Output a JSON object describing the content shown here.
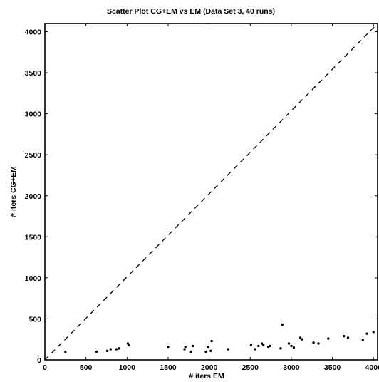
{
  "chart_data": {
    "type": "scatter",
    "title": "Scatter Plot CG+EM vs  EM (Data Set 3, 40 runs)",
    "xlabel": "# iters EM",
    "ylabel": "# iters CG+EM",
    "xlim": [
      0,
      4050
    ],
    "ylim": [
      0,
      4100
    ],
    "x_ticks": [
      0,
      500,
      1000,
      1500,
      2000,
      2500,
      3000,
      3500,
      4000
    ],
    "y_ticks": [
      0,
      500,
      1000,
      1500,
      2000,
      2500,
      3000,
      3500,
      4000
    ],
    "x_tick_labels": [
      "0",
      "500",
      "1000",
      "1500",
      "2000",
      "2500",
      "3000",
      "3500",
      "4000"
    ],
    "y_tick_labels": [
      "0",
      "500",
      "1000",
      "1500",
      "2000",
      "2500",
      "3000",
      "3500",
      "4000"
    ],
    "grid": false,
    "reference_line": {
      "style": "dashed",
      "from": [
        0,
        0
      ],
      "to": [
        4050,
        4100
      ]
    },
    "series": [
      {
        "x": [
          250,
          630,
          760,
          800,
          870,
          900,
          1010,
          1020,
          1500,
          1700,
          1710,
          1780,
          1800,
          1960,
          1990,
          2020,
          2030,
          2230,
          2510,
          2560,
          2600,
          2640,
          2660,
          2720,
          2740,
          2870,
          2890,
          2970,
          3000,
          3030,
          3110,
          3130,
          3270,
          3330,
          3450,
          3640,
          3690,
          3870,
          3920,
          4000
        ],
        "y": [
          100,
          100,
          110,
          130,
          130,
          140,
          200,
          180,
          160,
          130,
          160,
          100,
          170,
          100,
          160,
          110,
          230,
          130,
          180,
          130,
          170,
          200,
          180,
          160,
          170,
          140,
          430,
          200,
          170,
          150,
          270,
          250,
          210,
          200,
          260,
          290,
          270,
          240,
          320,
          340
        ]
      }
    ]
  }
}
